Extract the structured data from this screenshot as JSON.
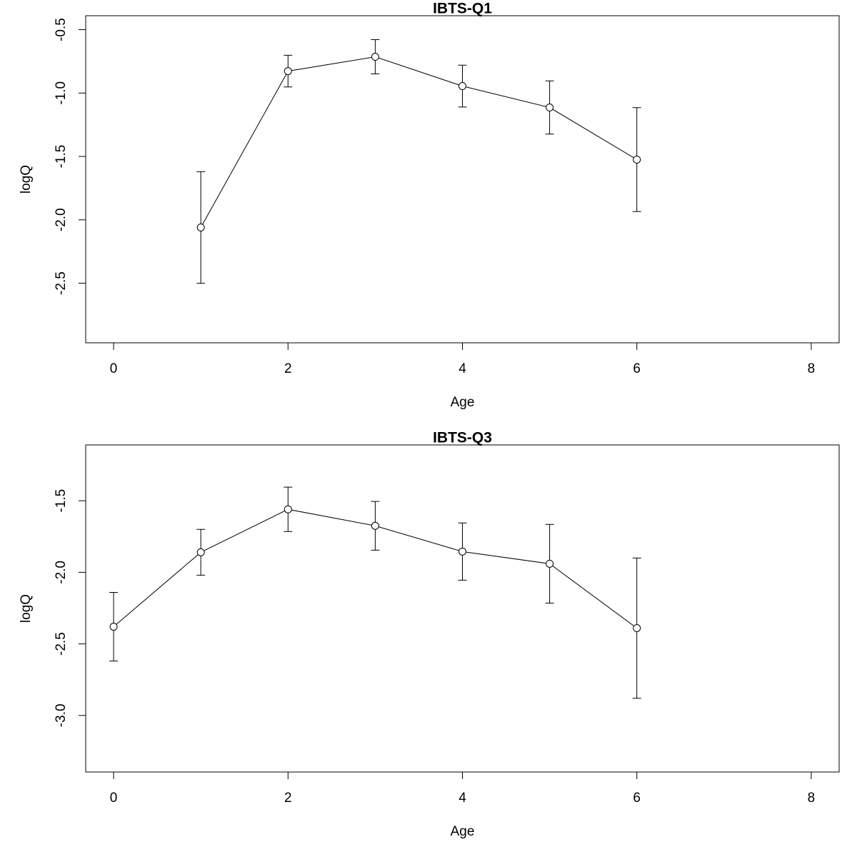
{
  "chart_data": [
    {
      "type": "line",
      "title": "IBTS-Q1",
      "x_label": "Age",
      "y_label": "logQ",
      "color": "#000000",
      "x": [
        1,
        2,
        3,
        4,
        5,
        6
      ],
      "values": [
        -2.06,
        -0.827,
        -0.714,
        -0.945,
        -1.114,
        -1.525
      ],
      "errors": [
        0.44,
        0.125,
        0.135,
        0.165,
        0.21,
        0.41
      ],
      "xlim": [
        -0.32,
        8.32
      ],
      "xticks": [
        0,
        2,
        4,
        6,
        8
      ],
      "ylim": [
        -2.97,
        -0.39
      ],
      "yticks": [
        -0.5,
        {
          "value": -1,
          "label": "-1.0"
        },
        -1.5,
        {
          "value": -2,
          "label": "-2.0"
        },
        -2.5
      ]
    },
    {
      "type": "line",
      "title": "IBTS-Q3",
      "x_label": "Age",
      "y_label": "logQ",
      "color": "#000000",
      "x": [
        0,
        1,
        2,
        3,
        4,
        5,
        6
      ],
      "values": [
        -2.38,
        -1.86,
        -1.56,
        -1.675,
        -1.855,
        -1.94,
        -2.39
      ],
      "errors": [
        0.24,
        0.16,
        0.155,
        0.17,
        0.2,
        0.275,
        0.49
      ],
      "xlim": [
        -0.32,
        8.32
      ],
      "xticks": [
        0,
        2,
        4,
        6,
        8
      ],
      "ylim": [
        -3.395,
        -1.11
      ],
      "yticks": [
        -1.5,
        {
          "value": -2,
          "label": "-2.0"
        },
        -2.5,
        {
          "value": -3,
          "label": "-3.0"
        }
      ]
    }
  ]
}
